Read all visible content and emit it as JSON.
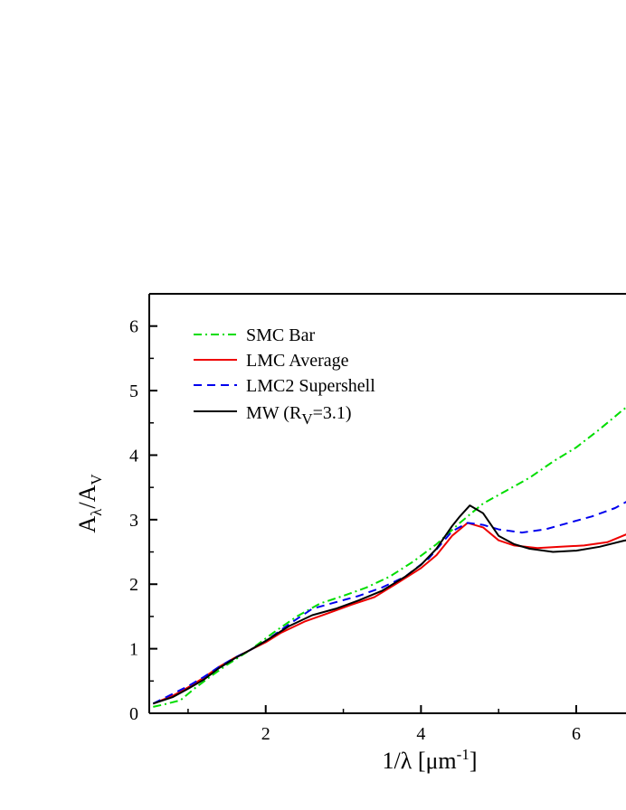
{
  "chart_data": {
    "type": "line",
    "title": "",
    "xlabel": {
      "prefix": "1/",
      "symbol": "λ",
      "unit_open": " [μm",
      "unit_exp": "-1",
      "unit_close": "]"
    },
    "ylabel": {
      "numerator": "A",
      "numerator_sub": "λ",
      "slash": "/",
      "denominator": "A",
      "denominator_sub": "V"
    },
    "xlim": [
      0.5,
      7.2
    ],
    "ylim": [
      0,
      6.5
    ],
    "xticks": [
      {
        "value": 2,
        "label": "2"
      },
      {
        "value": 4,
        "label": "4"
      },
      {
        "value": 6,
        "label": "6"
      }
    ],
    "yticks": [
      {
        "value": 0,
        "label": "0"
      },
      {
        "value": 1,
        "label": "1"
      },
      {
        "value": 2,
        "label": "2"
      },
      {
        "value": 3,
        "label": "3"
      },
      {
        "value": 4,
        "label": "4"
      },
      {
        "value": 5,
        "label": "5"
      },
      {
        "value": 6,
        "label": "6"
      }
    ],
    "grid": false,
    "legend_position": "top-left",
    "series": [
      {
        "name": "SMC Bar",
        "color": "#00dd00",
        "dash": "dash-dot",
        "x": [
          0.55,
          0.7,
          0.9,
          1.1,
          1.3,
          1.5,
          1.8,
          2.1,
          2.4,
          2.7,
          3.0,
          3.3,
          3.6,
          3.9,
          4.2,
          4.5,
          4.8,
          5.1,
          5.4,
          5.7,
          6.0,
          6.3,
          6.6,
          6.8
        ],
        "y": [
          0.1,
          0.14,
          0.2,
          0.4,
          0.58,
          0.75,
          0.98,
          1.25,
          1.5,
          1.7,
          1.82,
          1.95,
          2.12,
          2.35,
          2.62,
          2.95,
          3.25,
          3.45,
          3.65,
          3.9,
          4.12,
          4.4,
          4.7,
          4.88
        ]
      },
      {
        "name": "LMC Average",
        "color": "#ee0000",
        "dash": "solid",
        "x": [
          0.55,
          0.8,
          1.0,
          1.2,
          1.4,
          1.6,
          1.8,
          2.0,
          2.2,
          2.5,
          2.8,
          3.1,
          3.4,
          3.7,
          4.0,
          4.2,
          4.4,
          4.6,
          4.8,
          5.0,
          5.2,
          5.5,
          5.8,
          6.1,
          6.4,
          6.6,
          6.8
        ],
        "y": [
          0.15,
          0.27,
          0.4,
          0.55,
          0.72,
          0.86,
          0.98,
          1.1,
          1.25,
          1.42,
          1.55,
          1.68,
          1.8,
          2.02,
          2.25,
          2.45,
          2.75,
          2.95,
          2.88,
          2.68,
          2.6,
          2.56,
          2.58,
          2.6,
          2.65,
          2.75,
          2.85
        ]
      },
      {
        "name": "LMC2 Supershell",
        "color": "#0000ee",
        "dash": "dash",
        "x": [
          0.55,
          0.8,
          1.0,
          1.2,
          1.4,
          1.6,
          1.8,
          2.0,
          2.3,
          2.6,
          2.9,
          3.2,
          3.5,
          3.8,
          4.1,
          4.4,
          4.6,
          4.8,
          5.0,
          5.3,
          5.6,
          5.9,
          6.2,
          6.5,
          6.8
        ],
        "y": [
          0.15,
          0.3,
          0.42,
          0.56,
          0.72,
          0.86,
          0.98,
          1.12,
          1.38,
          1.62,
          1.72,
          1.82,
          1.95,
          2.12,
          2.4,
          2.82,
          2.95,
          2.92,
          2.85,
          2.8,
          2.85,
          2.95,
          3.05,
          3.18,
          3.38
        ]
      },
      {
        "name": "MW (R_V=3.1)",
        "color": "#000000",
        "dash": "solid",
        "x": [
          0.55,
          0.8,
          1.0,
          1.2,
          1.4,
          1.6,
          1.8,
          2.0,
          2.3,
          2.6,
          2.9,
          3.2,
          3.5,
          3.8,
          4.0,
          4.2,
          4.4,
          4.5,
          4.63,
          4.8,
          5.0,
          5.2,
          5.4,
          5.7,
          6.0,
          6.3,
          6.6,
          6.8
        ],
        "y": [
          0.15,
          0.25,
          0.38,
          0.52,
          0.7,
          0.85,
          0.98,
          1.12,
          1.35,
          1.52,
          1.62,
          1.75,
          1.9,
          2.12,
          2.3,
          2.55,
          2.9,
          3.05,
          3.22,
          3.1,
          2.75,
          2.62,
          2.55,
          2.5,
          2.52,
          2.58,
          2.67,
          2.72
        ]
      }
    ]
  },
  "legend_labels": {
    "smc": "SMC Bar",
    "lmc": "LMC Average",
    "lmc2": "LMC2 Supershell",
    "mw_prefix": "MW (R",
    "mw_sub": "V",
    "mw_suffix": "=3.1)"
  }
}
